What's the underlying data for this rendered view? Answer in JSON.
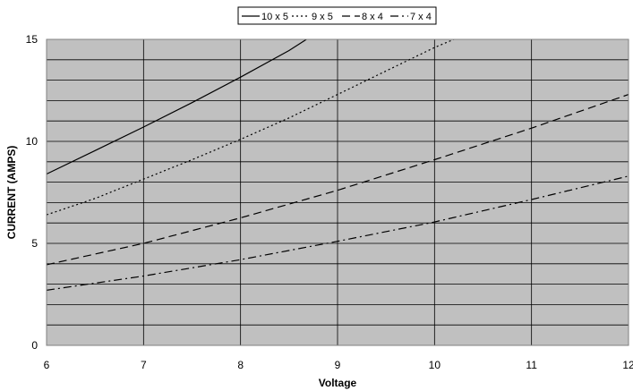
{
  "chart_data": {
    "type": "line",
    "xlabel": "Voltage",
    "ylabel": "CURRENT (AMPS)",
    "xlim": [
      6,
      12
    ],
    "ylim": [
      0,
      15
    ],
    "x_ticks": [
      "6",
      "7",
      "8",
      "9",
      "10",
      "11",
      "12"
    ],
    "y_ticks": [
      "0",
      "5",
      "10",
      "15"
    ],
    "grid": true,
    "legend_position": "top-center",
    "colors": {
      "plot_background": "#c0c0c0",
      "grid": "#000000",
      "line": "#000000"
    },
    "series": [
      {
        "name": "10 x 5",
        "style": "solid",
        "x": [
          6,
          6.5,
          7,
          7.5,
          8,
          8.5,
          8.68
        ],
        "y": [
          8.4,
          9.55,
          10.7,
          11.9,
          13.15,
          14.45,
          15.0
        ]
      },
      {
        "name": "9 x 5",
        "style": "dotted",
        "x": [
          6,
          6.5,
          7,
          7.5,
          8,
          8.5,
          9,
          9.5,
          10,
          10.2
        ],
        "y": [
          6.4,
          7.2,
          8.15,
          9.1,
          10.1,
          11.15,
          12.3,
          13.45,
          14.6,
          15.0
        ]
      },
      {
        "name": "8 x 4",
        "style": "dashed",
        "x": [
          6,
          7,
          8,
          9,
          10,
          11,
          12
        ],
        "y": [
          3.95,
          5.0,
          6.25,
          7.6,
          9.1,
          10.65,
          12.3
        ]
      },
      {
        "name": "7 x 4",
        "style": "dash-dot",
        "x": [
          6,
          7,
          8,
          9,
          10,
          11,
          12
        ],
        "y": [
          2.7,
          3.4,
          4.2,
          5.1,
          6.05,
          7.15,
          8.3
        ]
      }
    ]
  }
}
